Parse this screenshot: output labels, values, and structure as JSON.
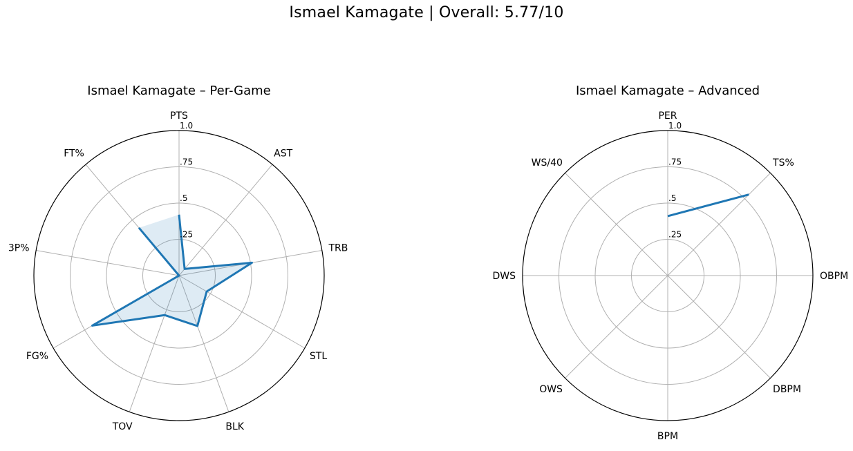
{
  "suptitle": "Ismael Kamagate | Overall: 5.77/10",
  "colors": {
    "line": "#1f77b4",
    "fill": "#1f77b4",
    "grid": "#b0b0b0",
    "frame": "#000000"
  },
  "chart_data": [
    {
      "type": "radar",
      "title": "Ismael Kamagate – Per-Game",
      "categories": [
        "PTS",
        "AST",
        "TRB",
        "STL",
        "BLK",
        "TOV",
        "FG%",
        "3P%",
        "FT%"
      ],
      "values": [
        0.42,
        0.06,
        0.51,
        0.22,
        0.37,
        0.29,
        0.69,
        0.0,
        0.43
      ],
      "rlim": [
        0,
        1
      ],
      "rticks": [
        0.25,
        0.5,
        0.75,
        1.0
      ],
      "rtick_labels": [
        ".25",
        ".5",
        ".75",
        "1.0"
      ],
      "grid": true,
      "filled": true
    },
    {
      "type": "radar",
      "title": "Ismael Kamagate – Advanced",
      "categories": [
        "PER",
        "TS%",
        "OBPM",
        "DBPM",
        "BPM",
        "OWS",
        "DWS",
        "WS/40"
      ],
      "values": [
        0.41,
        0.79,
        null,
        null,
        null,
        null,
        null,
        null
      ],
      "rlim": [
        0,
        1
      ],
      "rticks": [
        0.25,
        0.5,
        0.75,
        1.0
      ],
      "rtick_labels": [
        ".25",
        ".5",
        ".75",
        "1.0"
      ],
      "grid": true,
      "filled": false
    }
  ]
}
